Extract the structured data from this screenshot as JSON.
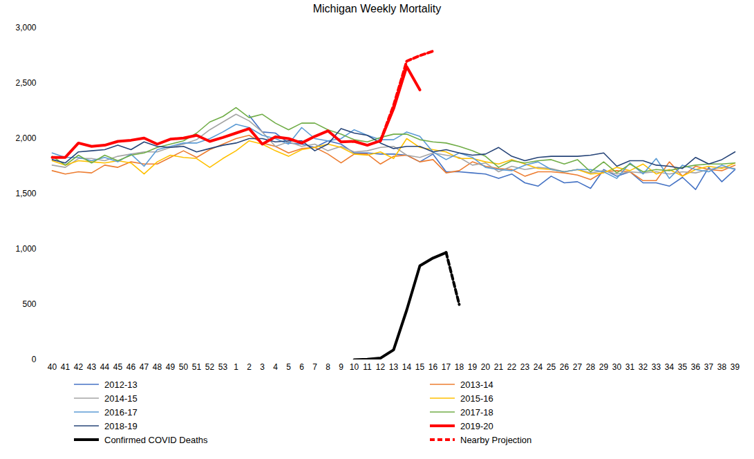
{
  "chart_data": {
    "type": "line",
    "title": "Michigan Weekly Mortality",
    "categories": [
      "40",
      "41",
      "42",
      "43",
      "44",
      "45",
      "46",
      "47",
      "48",
      "49",
      "50",
      "51",
      "52",
      "53",
      "1",
      "2",
      "3",
      "4",
      "5",
      "6",
      "7",
      "8",
      "9",
      "10",
      "11",
      "12",
      "13",
      "14",
      "15",
      "16",
      "17",
      "18",
      "19",
      "20",
      "21",
      "22",
      "23",
      "24",
      "25",
      "26",
      "27",
      "28",
      "29",
      "30",
      "31",
      "32",
      "33",
      "34",
      "35",
      "36",
      "37",
      "38",
      "39"
    ],
    "ylim": [
      0,
      3000
    ],
    "yticks": [
      0,
      500,
      1000,
      1500,
      2000,
      2500,
      3000
    ],
    "grid": false,
    "legend": "bottom",
    "series": [
      {
        "name": "2012-13",
        "color": "#4472c4",
        "line_style": "solid",
        "values": [
          null,
          null,
          null,
          null,
          null,
          null,
          null,
          null,
          null,
          null,
          null,
          null,
          null,
          null,
          null,
          2210,
          2060,
          2050,
          1960,
          1950,
          1920,
          1980,
          1950,
          1870,
          1870,
          1860,
          1860,
          1850,
          1790,
          1860,
          1700,
          1700,
          1690,
          1680,
          1640,
          1680,
          1600,
          1570,
          1660,
          1600,
          1610,
          1550,
          1720,
          1660,
          1700,
          1600,
          1600,
          1570,
          1650,
          1540,
          1740,
          1610,
          1720
        ]
      },
      {
        "name": "2013-14",
        "color": "#ed7d31",
        "line_style": "solid",
        "values": [
          1710,
          1680,
          1700,
          1690,
          1760,
          1740,
          1790,
          1770,
          1770,
          1830,
          1890,
          1830,
          1900,
          1950,
          2000,
          2030,
          1960,
          1930,
          1870,
          1910,
          1920,
          1860,
          1780,
          1860,
          1860,
          1770,
          1840,
          1850,
          1790,
          1810,
          1690,
          1710,
          1790,
          1750,
          1730,
          1720,
          1660,
          1700,
          1700,
          1690,
          1670,
          1630,
          1700,
          1710,
          1700,
          1620,
          1620,
          1790,
          1660,
          1750,
          1720,
          1710,
          1760
        ]
      },
      {
        "name": "2014-15",
        "color": "#a5a5a5",
        "line_style": "solid",
        "values": [
          1760,
          1740,
          1820,
          1820,
          1800,
          1840,
          1860,
          1880,
          1880,
          1920,
          1950,
          1990,
          2080,
          2150,
          2220,
          2160,
          2060,
          1930,
          1970,
          1930,
          1950,
          1890,
          1930,
          1880,
          1890,
          1920,
          1930,
          1850,
          1830,
          1870,
          1850,
          1830,
          1760,
          1780,
          1700,
          1750,
          1720,
          1740,
          1730,
          1700,
          1720,
          1690,
          1710,
          1680,
          1700,
          1690,
          1700,
          1680,
          1700,
          1690,
          1720,
          1740,
          1730
        ]
      },
      {
        "name": "2015-16",
        "color": "#ffc000",
        "line_style": "solid",
        "values": [
          1800,
          1760,
          1800,
          1790,
          1780,
          1800,
          1780,
          1680,
          1790,
          1850,
          1830,
          1820,
          1740,
          1820,
          1890,
          1980,
          1950,
          1890,
          1840,
          1900,
          1920,
          1950,
          1920,
          1860,
          1850,
          1880,
          1820,
          2000,
          1920,
          1900,
          1880,
          1820,
          1820,
          1790,
          1770,
          1810,
          1770,
          1730,
          1720,
          1700,
          1720,
          1680,
          1690,
          1740,
          1710,
          1770,
          1680,
          1720,
          1660,
          1720,
          1750,
          1730,
          1780
        ]
      },
      {
        "name": "2016-17",
        "color": "#5b9bd5",
        "line_style": "solid",
        "values": [
          1870,
          1830,
          1830,
          1800,
          1830,
          1790,
          1860,
          1750,
          1900,
          1930,
          1960,
          1960,
          2000,
          2060,
          2130,
          2100,
          2030,
          2000,
          1950,
          2100,
          2000,
          1980,
          2000,
          2080,
          2030,
          1990,
          1990,
          2060,
          2020,
          1880,
          1810,
          1870,
          1830,
          1740,
          1720,
          1710,
          1760,
          1790,
          1720,
          1700,
          1720,
          1720,
          1700,
          1640,
          1780,
          1680,
          1820,
          1640,
          1760,
          1720,
          1700,
          1760,
          1720
        ]
      },
      {
        "name": "2017-18",
        "color": "#70ad47",
        "line_style": "solid",
        "values": [
          1840,
          1760,
          1850,
          1780,
          1850,
          1800,
          1850,
          1870,
          1920,
          1950,
          1980,
          2050,
          2150,
          2200,
          2280,
          2190,
          2220,
          2140,
          2080,
          2140,
          2140,
          2080,
          2040,
          1990,
          1970,
          2010,
          2040,
          2040,
          1990,
          1970,
          1960,
          1930,
          1890,
          1840,
          1740,
          1800,
          1780,
          1800,
          1810,
          1770,
          1810,
          1700,
          1790,
          1690,
          1770,
          1700,
          1720,
          1710,
          1740,
          1760,
          1770,
          1770,
          1780
        ]
      },
      {
        "name": "2018-19",
        "color": "#264478",
        "line_style": "solid",
        "values": [
          1810,
          1780,
          1880,
          1890,
          1900,
          1940,
          1900,
          1970,
          1930,
          1920,
          1930,
          1880,
          1910,
          1940,
          1960,
          2000,
          2000,
          1970,
          1980,
          1980,
          1890,
          1950,
          2090,
          2050,
          2030,
          1960,
          1910,
          1930,
          1930,
          1880,
          1900,
          1870,
          1850,
          1860,
          1920,
          1840,
          1800,
          1830,
          1840,
          1840,
          1840,
          1850,
          1870,
          1750,
          1800,
          1800,
          1760,
          1750,
          1730,
          1830,
          1770,
          1810,
          1880
        ]
      },
      {
        "name": "2019-20",
        "color": "#ff0000",
        "line_style": "solid",
        "values": [
          1830,
          1830,
          1960,
          1930,
          1940,
          1975,
          1985,
          2005,
          1950,
          1995,
          2005,
          2030,
          1975,
          2010,
          2050,
          2090,
          1950,
          2015,
          2000,
          1960,
          2020,
          2070,
          1970,
          1975,
          1940,
          1980,
          2270,
          2650,
          2440,
          null,
          null,
          null,
          null,
          null,
          null,
          null,
          null,
          null,
          null,
          null,
          null,
          null,
          null,
          null,
          null,
          null,
          null,
          null,
          null,
          null,
          null,
          null,
          null
        ]
      },
      {
        "name": "Confirmed COVID Deaths",
        "color": "#000000",
        "line_style": "solid",
        "values": [
          null,
          null,
          null,
          null,
          null,
          null,
          null,
          null,
          null,
          null,
          null,
          null,
          null,
          null,
          null,
          null,
          null,
          null,
          null,
          null,
          null,
          null,
          null,
          0,
          5,
          15,
          90,
          450,
          850,
          920,
          970,
          null,
          null,
          null,
          null,
          null,
          null,
          null,
          null,
          null,
          null,
          null,
          null,
          null,
          null,
          null,
          null,
          null,
          null,
          null,
          null,
          null,
          null
        ]
      },
      {
        "name": "Nearby Projection",
        "color": "#ff0000",
        "line_style": "dashed",
        "values": [
          null,
          null,
          null,
          null,
          null,
          null,
          null,
          null,
          null,
          null,
          null,
          null,
          null,
          null,
          null,
          null,
          null,
          null,
          null,
          null,
          null,
          null,
          null,
          null,
          null,
          1980,
          2300,
          2700,
          2750,
          2790,
          null,
          null,
          null,
          null,
          null,
          null,
          null,
          null,
          null,
          null,
          null,
          null,
          null,
          null,
          null,
          null,
          null,
          null,
          null,
          null,
          null,
          null,
          null
        ]
      },
      {
        "color": "#000000",
        "line_style": "dashed",
        "values": [
          null,
          null,
          null,
          null,
          null,
          null,
          null,
          null,
          null,
          null,
          null,
          null,
          null,
          null,
          null,
          null,
          null,
          null,
          null,
          null,
          null,
          null,
          null,
          null,
          null,
          null,
          null,
          null,
          null,
          null,
          970,
          500,
          null,
          null,
          null,
          null,
          null,
          null,
          null,
          null,
          null,
          null,
          null,
          null,
          null,
          null,
          null,
          null,
          null,
          null,
          null,
          null,
          null
        ]
      }
    ]
  }
}
